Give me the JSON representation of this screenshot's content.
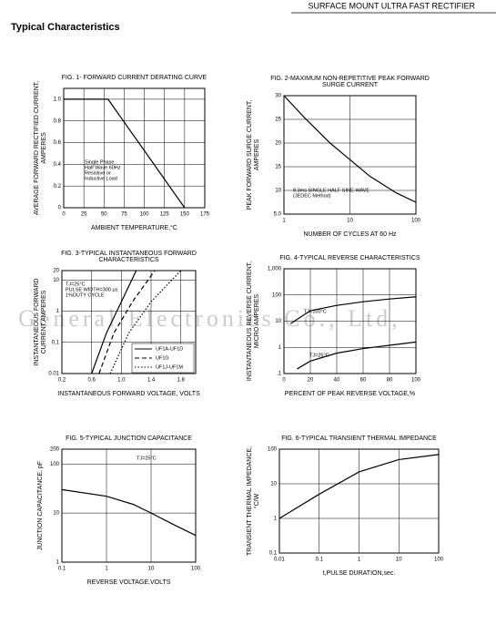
{
  "header": "SURFACE MOUNT ULTRA FAST RECTIFIER",
  "section_title": "Typical Characteristics",
  "watermark": "General Electronics Co., Ltd,",
  "chart_data": [
    {
      "type": "line",
      "title": [
        "FIG. 1- FORWARD CURRENT DERATING CURVE"
      ],
      "y_label": [
        "AVERAGE FORWARD RECTIFIED CURRENT,",
        "AMPERES"
      ],
      "x_label": "AMBIENT TEMPERATURE,°C",
      "xlim": [
        0,
        175
      ],
      "xticks": [
        0,
        25,
        50,
        75,
        100,
        125,
        150,
        175
      ],
      "ylim": [
        0,
        1.1
      ],
      "yticks": [
        0,
        {
          "value": 0.2,
          "label": "0.2"
        },
        {
          "value": 0.4,
          "label": "0.4"
        },
        {
          "value": 0.6,
          "label": "0.6"
        },
        {
          "value": 0.8,
          "label": "0.8"
        },
        {
          "value": 1,
          "label": "1.0"
        }
      ],
      "x": [
        0,
        55,
        150
      ],
      "values": [
        1,
        1,
        0
      ],
      "color": "#000",
      "annotations": [
        [
          "Single Phase",
          "Half Wave 60Hz",
          "Resistive or",
          "Inductive Load"
        ]
      ]
    },
    {
      "type": "line",
      "title": [
        "FIG. 2-MAXIMUM NON-REPETITIVE PEAK FORWARD",
        "SURGE CURRENT"
      ],
      "y_label": [
        "PEAK FORWARD SURGE CURRENT,",
        "AMPERES"
      ],
      "x_label": "NUMBER OF CYCLES AT 60 Hz",
      "xlog": true,
      "xlim": [
        1,
        100
      ],
      "xticks": [
        1,
        10,
        100
      ],
      "ylim": [
        5,
        30
      ],
      "yticks": [
        {
          "value": 5,
          "label": "5.0"
        },
        10,
        15,
        20,
        25,
        30
      ],
      "x": [
        1,
        2,
        5,
        10,
        20,
        50,
        100
      ],
      "values": [
        30,
        25.5,
        20,
        16.5,
        13,
        9.5,
        7.5
      ],
      "color": "#000",
      "annotations": [
        [
          "8.3ms SINGLE HALF SINE-WAVE",
          "(JEDEC Method)"
        ]
      ]
    },
    {
      "type": "line",
      "title": [
        "FIG. 3-TYPICAL INSTANTANEOUS FORWARD",
        "CHARACTERISTICS"
      ],
      "y_label": [
        "INSTANTANEOUS FORWARD",
        "CURRENT,AMPERES"
      ],
      "x_label": "INSTANTANEOUS FORWARD VOLTAGE, VOLTS",
      "xlim": [
        0.2,
        2
      ],
      "xticks": [
        0.2,
        0.6,
        {
          "value": 1,
          "label": "1.0"
        },
        1.4,
        1.8
      ],
      "ylog": true,
      "ylim": [
        0.01,
        20
      ],
      "yticks": [
        0.01,
        0.1,
        1,
        10,
        20
      ],
      "series": [
        {
          "name": "UF1A-UF1D",
          "color": "#000",
          "dash": "solid",
          "x": [
            0.6,
            0.8,
            1,
            1.2
          ],
          "values": [
            0.01,
            0.2,
            2,
            20
          ]
        },
        {
          "name": "UF1G",
          "color": "#000",
          "dash": "dashed",
          "x": [
            0.7,
            0.9,
            1.15,
            1.45
          ],
          "values": [
            0.01,
            0.2,
            2,
            20
          ]
        },
        {
          "name": "UF1J-UF1M",
          "color": "#000",
          "dash": "dotted",
          "x": [
            0.85,
            1.1,
            1.4,
            1.8
          ],
          "values": [
            0.01,
            0.2,
            2,
            20
          ]
        }
      ],
      "annotations": [
        [
          "TJ=25°C",
          "PULSE WIDTH=300 μs",
          "1%DUTY CYCLE"
        ]
      ]
    },
    {
      "type": "line",
      "title": [
        "FIG. 4-TYPICAL REVERSE CHARACTERISTICS"
      ],
      "y_label": [
        "INSTANTANEOUS REVERSE CURRENT,",
        "MICRO AMPERES"
      ],
      "x_label": "PERCENT OF PEAK REVERSE VOLTAGE,%",
      "xlim": [
        0,
        100
      ],
      "xticks": [
        0,
        20,
        40,
        60,
        80,
        100
      ],
      "ylog": true,
      "ylim": [
        0.1,
        1000
      ],
      "yticks": [
        {
          "value": 0.1,
          "label": ".1"
        },
        1,
        10,
        100,
        {
          "value": 1000,
          "label": "1,000"
        }
      ],
      "series": [
        {
          "color": "#000",
          "dash": "solid",
          "x": [
            5,
            20,
            40,
            60,
            80,
            100
          ],
          "values": [
            8,
            25,
            40,
            55,
            70,
            85
          ]
        },
        {
          "color": "#000",
          "dash": "solid",
          "x": [
            10,
            20,
            40,
            60,
            80,
            100
          ],
          "values": [
            0.15,
            0.3,
            0.6,
            0.9,
            1.2,
            1.6
          ]
        }
      ],
      "annotations": [
        [
          "TJ=100°C"
        ],
        [
          "TJ=25°C"
        ]
      ]
    },
    {
      "type": "line",
      "title": [
        "FIG. 5-TYPICAL JUNCTION CAPACITANCE"
      ],
      "y_label": [
        "JUNCTION CAPACITANCE, pF"
      ],
      "x_label": "REVERSE VOLTAGE,VOLTS",
      "xlog": true,
      "xlim": [
        0.1,
        100
      ],
      "xticks": [
        0.1,
        1,
        10,
        100
      ],
      "ylog": true,
      "ylim": [
        1,
        200
      ],
      "yticks": [
        1,
        10,
        100,
        200
      ],
      "x": [
        0.1,
        1,
        4,
        10,
        30,
        100
      ],
      "values": [
        30,
        22,
        15,
        10,
        6,
        3.5
      ],
      "color": "#000",
      "annotations": [
        [
          "TJ=25°C"
        ]
      ]
    },
    {
      "type": "line",
      "title": [
        "FIG. 6-TYPICAL TRANSIENT THERMAL IMPEDANCE"
      ],
      "y_label": [
        "TRANSIENT THERMAL IMPEDANCE,",
        "°C/W"
      ],
      "x_label": "t,PULSE DURATION,sec.",
      "xlog": true,
      "xlim": [
        0.01,
        100
      ],
      "xticks": [
        0.01,
        0.1,
        1,
        10,
        100
      ],
      "ylog": true,
      "ylim": [
        0.1,
        100
      ],
      "yticks": [
        0.1,
        1,
        10,
        100
      ],
      "x": [
        0.01,
        0.1,
        1,
        10,
        100
      ],
      "values": [
        1,
        5,
        22,
        50,
        70
      ],
      "color": "#000",
      "annotations": []
    }
  ]
}
